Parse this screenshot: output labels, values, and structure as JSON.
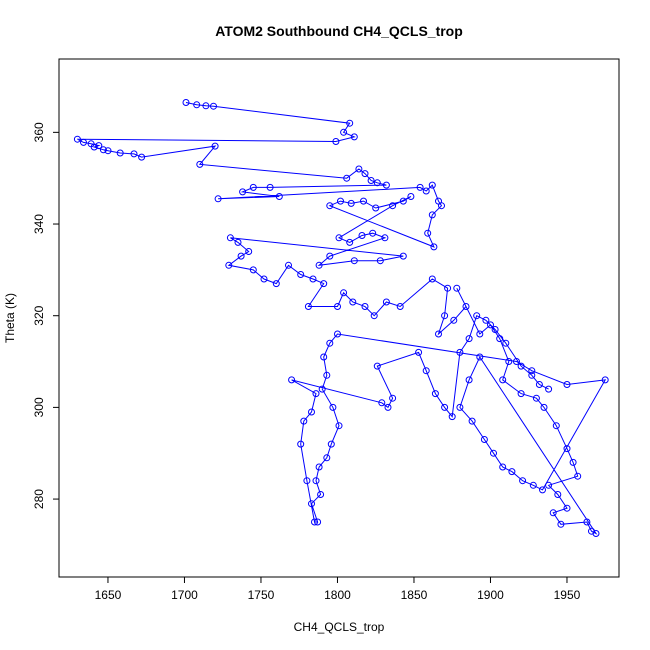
{
  "chart_data": {
    "type": "scatter",
    "mode": "lines+markers",
    "title": "ATOM2 Southbound CH4_QCLS_trop",
    "xlabel": "CH4_QCLS_trop",
    "ylabel": "Theta (K)",
    "xlim": [
      1618,
      1984
    ],
    "ylim": [
      263,
      376
    ],
    "xticks": [
      1650,
      1700,
      1750,
      1800,
      1850,
      1900,
      1950
    ],
    "yticks": [
      280,
      300,
      320,
      340,
      360
    ],
    "grid": false,
    "legend": "none",
    "series": [
      {
        "color": "#0000ff",
        "marker": "open-circle",
        "points": [
          [
            1701,
            366.5
          ],
          [
            1708,
            366
          ],
          [
            1714,
            365.8
          ],
          [
            1719,
            365.7
          ],
          [
            1808,
            362
          ],
          [
            1804,
            360
          ],
          [
            1811,
            359
          ],
          [
            1799,
            358
          ],
          [
            1630,
            358.5
          ],
          [
            1634,
            357.8
          ],
          [
            1639,
            357.5
          ],
          [
            1644,
            357.1
          ],
          [
            1641,
            356.8
          ],
          [
            1647,
            356.2
          ],
          [
            1650,
            356
          ],
          [
            1658,
            355.5
          ],
          [
            1667,
            355.3
          ],
          [
            1672,
            354.6
          ],
          [
            1720,
            357
          ],
          [
            1710,
            353
          ],
          [
            1806,
            350
          ],
          [
            1814,
            352
          ],
          [
            1818,
            351
          ],
          [
            1822,
            349.5
          ],
          [
            1826,
            349
          ],
          [
            1832,
            348.5
          ],
          [
            1756,
            348
          ],
          [
            1745,
            348
          ],
          [
            1738,
            347
          ],
          [
            1762,
            346
          ],
          [
            1722,
            345.5
          ],
          [
            1854,
            348
          ],
          [
            1858,
            347.2
          ],
          [
            1862,
            348.5
          ],
          [
            1866,
            345
          ],
          [
            1868,
            344
          ],
          [
            1862,
            342
          ],
          [
            1859,
            338
          ],
          [
            1863,
            335
          ],
          [
            1795,
            344
          ],
          [
            1802,
            345
          ],
          [
            1809,
            344.5
          ],
          [
            1817,
            345
          ],
          [
            1825,
            343.5
          ],
          [
            1843,
            345
          ],
          [
            1848,
            346
          ],
          [
            1836,
            344
          ],
          [
            1801,
            337
          ],
          [
            1808,
            336
          ],
          [
            1816,
            337.5
          ],
          [
            1823,
            338
          ],
          [
            1831,
            337
          ],
          [
            1795,
            333
          ],
          [
            1788,
            331
          ],
          [
            1811,
            332
          ],
          [
            1828,
            332
          ],
          [
            1843,
            333
          ],
          [
            1730,
            337
          ],
          [
            1735,
            336
          ],
          [
            1742,
            334
          ],
          [
            1737,
            333
          ],
          [
            1729,
            331
          ],
          [
            1745,
            330
          ],
          [
            1752,
            328
          ],
          [
            1760,
            327
          ],
          [
            1768,
            331
          ],
          [
            1776,
            329
          ],
          [
            1784,
            328
          ],
          [
            1791,
            327
          ],
          [
            1781,
            322
          ],
          [
            1800,
            322
          ],
          [
            1804,
            325
          ],
          [
            1810,
            323
          ],
          [
            1818,
            322
          ],
          [
            1824,
            320
          ],
          [
            1832,
            323
          ],
          [
            1841,
            322
          ],
          [
            1862,
            328
          ],
          [
            1872,
            326
          ],
          [
            1870,
            320
          ],
          [
            1866,
            316
          ],
          [
            1876,
            319
          ],
          [
            1884,
            322
          ],
          [
            1878,
            326
          ],
          [
            1893,
            316
          ],
          [
            1900,
            318
          ],
          [
            1906,
            315
          ],
          [
            1912,
            310
          ],
          [
            1908,
            306
          ],
          [
            1920,
            303
          ],
          [
            1930,
            302
          ],
          [
            1935,
            300
          ],
          [
            1943,
            296
          ],
          [
            1950,
            291
          ],
          [
            1954,
            288
          ],
          [
            1957,
            285
          ],
          [
            1938,
            283
          ],
          [
            1944,
            281
          ],
          [
            1950,
            278
          ],
          [
            1941,
            277
          ],
          [
            1946,
            274.5
          ],
          [
            1963,
            275
          ],
          [
            1966,
            273
          ],
          [
            1969,
            272.5
          ],
          [
            1893,
            311
          ],
          [
            1886,
            306
          ],
          [
            1880,
            300
          ],
          [
            1888,
            297
          ],
          [
            1896,
            293
          ],
          [
            1902,
            290
          ],
          [
            1908,
            287
          ],
          [
            1914,
            286
          ],
          [
            1921,
            284
          ],
          [
            1928,
            283
          ],
          [
            1934,
            282
          ],
          [
            1975,
            306
          ],
          [
            1950,
            305
          ],
          [
            1927,
            308
          ],
          [
            1917,
            310
          ],
          [
            1800,
            316
          ],
          [
            1795,
            314
          ],
          [
            1791,
            311
          ],
          [
            1793,
            307
          ],
          [
            1790,
            304
          ],
          [
            1797,
            300
          ],
          [
            1801,
            296
          ],
          [
            1796,
            292
          ],
          [
            1793,
            289
          ],
          [
            1788,
            287
          ],
          [
            1786,
            284
          ],
          [
            1789,
            281
          ],
          [
            1783,
            279
          ],
          [
            1787,
            275
          ],
          [
            1785,
            275
          ],
          [
            1780,
            284
          ],
          [
            1776,
            292
          ],
          [
            1778,
            297
          ],
          [
            1783,
            299
          ],
          [
            1786,
            303
          ],
          [
            1770,
            306
          ],
          [
            1829,
            301
          ],
          [
            1833,
            300
          ],
          [
            1836,
            302
          ],
          [
            1826,
            309
          ],
          [
            1853,
            312
          ],
          [
            1858,
            308
          ],
          [
            1864,
            303
          ],
          [
            1870,
            300
          ],
          [
            1875,
            298
          ],
          [
            1880,
            312
          ],
          [
            1886,
            315
          ],
          [
            1891,
            320
          ],
          [
            1897,
            319
          ],
          [
            1903,
            317
          ],
          [
            1910,
            314
          ],
          [
            1920,
            309
          ],
          [
            1927,
            307
          ],
          [
            1932,
            305
          ],
          [
            1938,
            304
          ]
        ]
      }
    ]
  }
}
